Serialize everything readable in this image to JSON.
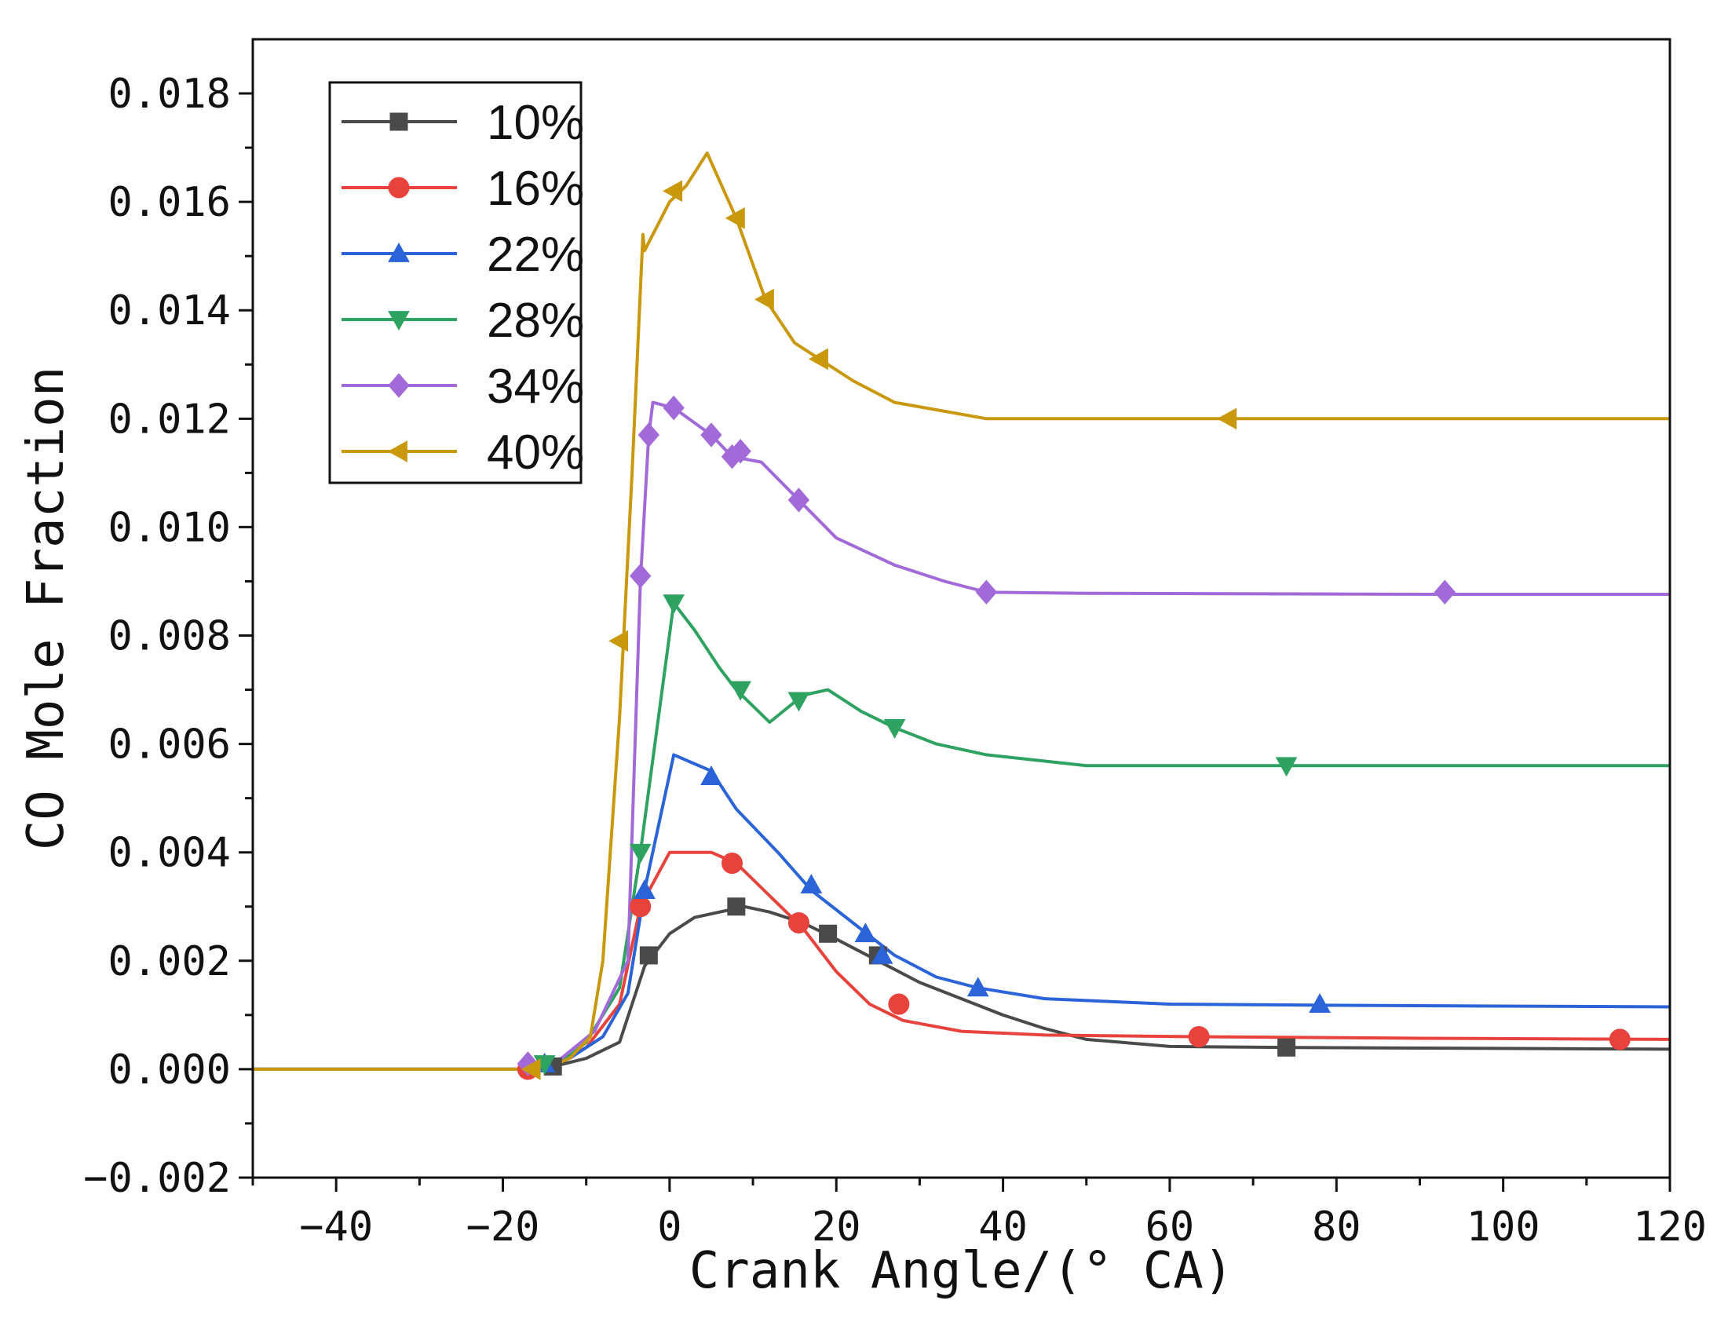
{
  "chart_data": {
    "type": "line",
    "title": "",
    "xlabel": "Crank Angle/(° CA)",
    "ylabel": "CO Mole Fraction",
    "xlim": [
      -50,
      120
    ],
    "ylim": [
      -0.002,
      0.019
    ],
    "xticks": [
      -40,
      -20,
      0,
      20,
      40,
      60,
      80,
      100,
      120
    ],
    "xtick_labels": [
      "−40",
      "−20",
      "0",
      "20",
      "40",
      "60",
      "80",
      "100",
      "120"
    ],
    "yticks": [
      -0.002,
      0.0,
      0.002,
      0.004,
      0.006,
      0.008,
      0.01,
      0.012,
      0.014,
      0.016,
      0.018
    ],
    "ytick_labels": [
      "−0.002",
      "0.000",
      "0.002",
      "0.004",
      "0.006",
      "0.008",
      "0.010",
      "0.012",
      "0.014",
      "0.016",
      "0.018"
    ],
    "grid": false,
    "legend_position": "top-left",
    "series": [
      {
        "name": "10%",
        "color": "#4a4a4a",
        "marker": "square",
        "line": [
          [
            -50,
            0
          ],
          [
            -18,
            0
          ],
          [
            -14,
            5e-05
          ],
          [
            -10,
            0.0002
          ],
          [
            -6,
            0.0005
          ],
          [
            -3,
            0.0019
          ],
          [
            0,
            0.0025
          ],
          [
            3,
            0.0028
          ],
          [
            6,
            0.0029
          ],
          [
            9,
            0.003
          ],
          [
            12,
            0.0029
          ],
          [
            16,
            0.0027
          ],
          [
            20,
            0.0024
          ],
          [
            25,
            0.002
          ],
          [
            30,
            0.0016
          ],
          [
            35,
            0.0013
          ],
          [
            40,
            0.001
          ],
          [
            45,
            0.00075
          ],
          [
            50,
            0.00055
          ],
          [
            60,
            0.00042
          ],
          [
            75,
            0.0004
          ],
          [
            120,
            0.00037
          ]
        ],
        "markers": [
          [
            -14,
            5e-05
          ],
          [
            -2.5,
            0.0021
          ],
          [
            8,
            0.003
          ],
          [
            19,
            0.0025
          ],
          [
            25,
            0.0021
          ],
          [
            74,
            0.0004
          ]
        ]
      },
      {
        "name": "16%",
        "color": "#e8423c",
        "marker": "circle",
        "line": [
          [
            -50,
            0
          ],
          [
            -17,
            0
          ],
          [
            -14,
            0.0001
          ],
          [
            -10,
            0.0004
          ],
          [
            -6,
            0.0012
          ],
          [
            -3.5,
            0.003
          ],
          [
            0,
            0.004
          ],
          [
            5,
            0.004
          ],
          [
            8,
            0.0038
          ],
          [
            12,
            0.0032
          ],
          [
            16,
            0.0026
          ],
          [
            20,
            0.0018
          ],
          [
            24,
            0.0012
          ],
          [
            28,
            0.0009
          ],
          [
            35,
            0.0007
          ],
          [
            45,
            0.00063
          ],
          [
            63,
            0.0006
          ],
          [
            90,
            0.00057
          ],
          [
            120,
            0.00055
          ]
        ],
        "markers": [
          [
            -17,
            0
          ],
          [
            -3.5,
            0.003
          ],
          [
            7.5,
            0.0038
          ],
          [
            15.5,
            0.0027
          ],
          [
            27.5,
            0.0012
          ],
          [
            63.5,
            0.0006
          ],
          [
            114,
            0.00055
          ]
        ]
      },
      {
        "name": "22%",
        "color": "#2a64d8",
        "marker": "triangle-up",
        "line": [
          [
            -50,
            0
          ],
          [
            -15,
            0
          ],
          [
            -12,
            0.0002
          ],
          [
            -8,
            0.0006
          ],
          [
            -5,
            0.0014
          ],
          [
            -3,
            0.0033
          ],
          [
            0.5,
            0.0058
          ],
          [
            5,
            0.0055
          ],
          [
            8,
            0.0048
          ],
          [
            13,
            0.004
          ],
          [
            17,
            0.0033
          ],
          [
            22,
            0.0027
          ],
          [
            27,
            0.0021
          ],
          [
            32,
            0.0017
          ],
          [
            37,
            0.0015
          ],
          [
            45,
            0.0013
          ],
          [
            60,
            0.0012
          ],
          [
            78,
            0.00118
          ],
          [
            120,
            0.00115
          ]
        ],
        "markers": [
          [
            -15,
            0.0001
          ],
          [
            -3,
            0.0033
          ],
          [
            5,
            0.0054
          ],
          [
            17,
            0.0034
          ],
          [
            23.5,
            0.0025
          ],
          [
            25.5,
            0.0021
          ],
          [
            37,
            0.0015
          ],
          [
            78,
            0.0012
          ]
        ]
      },
      {
        "name": "28%",
        "color": "#2ea361",
        "marker": "triangle-down",
        "line": [
          [
            -50,
            0
          ],
          [
            -14,
            0
          ],
          [
            -10,
            0.0005
          ],
          [
            -6,
            0.0015
          ],
          [
            -3.5,
            0.004
          ],
          [
            0.5,
            0.0086
          ],
          [
            3,
            0.0081
          ],
          [
            6,
            0.0074
          ],
          [
            8,
            0.007
          ],
          [
            12,
            0.0064
          ],
          [
            16,
            0.0069
          ],
          [
            19,
            0.007
          ],
          [
            23,
            0.0066
          ],
          [
            27,
            0.0063
          ],
          [
            32,
            0.006
          ],
          [
            38,
            0.0058
          ],
          [
            50,
            0.0056
          ],
          [
            75,
            0.0056
          ],
          [
            120,
            0.0056
          ]
        ],
        "markers": [
          [
            -15,
            0.0001
          ],
          [
            -3.5,
            0.004
          ],
          [
            0.5,
            0.0086
          ],
          [
            8.5,
            0.007
          ],
          [
            15.5,
            0.0068
          ],
          [
            27,
            0.0063
          ],
          [
            74,
            0.0056
          ]
        ]
      },
      {
        "name": "34%",
        "color": "#a26ad8",
        "marker": "diamond",
        "line": [
          [
            -50,
            0
          ],
          [
            -17,
            0
          ],
          [
            -13,
            0.0002
          ],
          [
            -9,
            0.0007
          ],
          [
            -5,
            0.002
          ],
          [
            -3.5,
            0.009
          ],
          [
            -2.5,
            0.0117
          ],
          [
            -2,
            0.0123
          ],
          [
            0.5,
            0.0122
          ],
          [
            5,
            0.0117
          ],
          [
            7.5,
            0.0113
          ],
          [
            11,
            0.0112
          ],
          [
            15.5,
            0.0105
          ],
          [
            20,
            0.0098
          ],
          [
            27,
            0.0093
          ],
          [
            33,
            0.009
          ],
          [
            38,
            0.0088
          ],
          [
            50,
            0.00878
          ],
          [
            93,
            0.00876
          ],
          [
            120,
            0.00876
          ]
        ],
        "markers": [
          [
            -17,
            0.0001
          ],
          [
            -3.5,
            0.0091
          ],
          [
            -2.5,
            0.0117
          ],
          [
            0.5,
            0.0122
          ],
          [
            5,
            0.0117
          ],
          [
            7.5,
            0.0113
          ],
          [
            8.5,
            0.0114
          ],
          [
            15.5,
            0.0105
          ],
          [
            38,
            0.0088
          ],
          [
            93,
            0.0088
          ]
        ]
      },
      {
        "name": "40%",
        "color": "#c9980c",
        "marker": "triangle-left",
        "line": [
          [
            -50,
            0
          ],
          [
            -15,
            0
          ],
          [
            -12,
            0.0002
          ],
          [
            -9.5,
            0.0006
          ],
          [
            -8,
            0.002
          ],
          [
            -6,
            0.0065
          ],
          [
            -4.5,
            0.011
          ],
          [
            -3.2,
            0.0154
          ],
          [
            -3,
            0.0151
          ],
          [
            0,
            0.016
          ],
          [
            2,
            0.0163
          ],
          [
            4.5,
            0.0169
          ],
          [
            8,
            0.0157
          ],
          [
            11.5,
            0.0142
          ],
          [
            15,
            0.0134
          ],
          [
            18,
            0.0131
          ],
          [
            22,
            0.0127
          ],
          [
            27,
            0.0123
          ],
          [
            38,
            0.012
          ],
          [
            67,
            0.012
          ],
          [
            120,
            0.012
          ]
        ],
        "markers": [
          [
            -16.5,
            0
          ],
          [
            -6,
            0.0079
          ],
          [
            0.5,
            0.0162
          ],
          [
            8,
            0.0157
          ],
          [
            11.5,
            0.0142
          ],
          [
            18,
            0.0131
          ],
          [
            67,
            0.012
          ]
        ]
      }
    ]
  }
}
